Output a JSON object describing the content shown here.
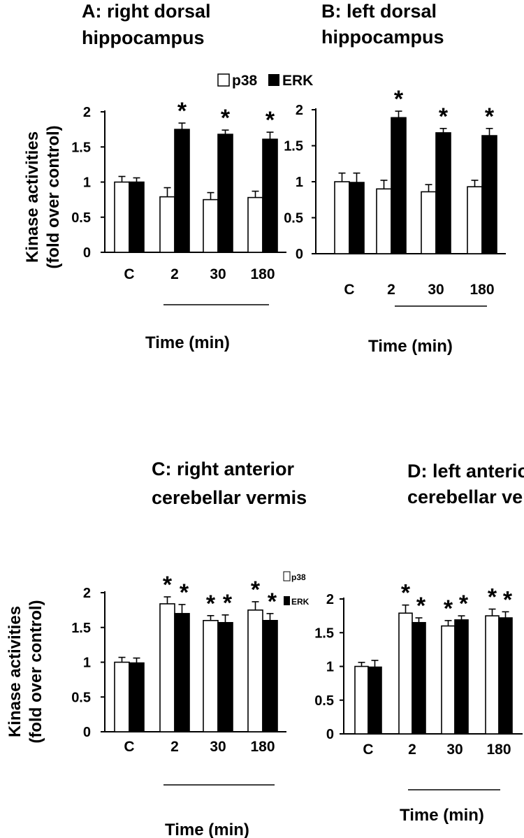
{
  "figure_legend": {
    "series": [
      "p38",
      "ERK"
    ]
  },
  "y_axis_label_top": [
    "Kinase activities",
    "(fold over control)"
  ],
  "y_axis_label_bottom": [
    "Kinase activities",
    "(fold over control)"
  ],
  "small_legend_c": {
    "series": [
      "p38",
      "ERK"
    ]
  },
  "chart_data": [
    {
      "type": "bar",
      "title": [
        "A: right dorsal",
        "hippocampus"
      ],
      "xlabel": "Time (min)",
      "ylabel": "Kinase activities (fold over control)",
      "categories": [
        "C",
        "2",
        "30",
        "180"
      ],
      "ylim": [
        0,
        2
      ],
      "yticks": [
        "0",
        "0.5",
        "1",
        "1.5",
        "2"
      ],
      "series": [
        {
          "name": "p38",
          "values": [
            1.0,
            0.79,
            0.75,
            0.78
          ],
          "errors": [
            0.08,
            0.13,
            0.1,
            0.09
          ],
          "color": "#ffffff"
        },
        {
          "name": "ERK",
          "values": [
            1.0,
            1.75,
            1.68,
            1.61
          ],
          "errors": [
            0.06,
            0.09,
            0.06,
            0.1
          ],
          "color": "#000000"
        }
      ],
      "significance": [
        [],
        [
          "*"
        ],
        [
          "*"
        ],
        [
          "*"
        ]
      ]
    },
    {
      "type": "bar",
      "title": [
        "B: left dorsal",
        "hippocampus"
      ],
      "xlabel": "Time (min)",
      "ylabel": "Kinase activities (fold over control)",
      "categories": [
        "C",
        "2",
        "30",
        "180"
      ],
      "ylim": [
        0,
        2
      ],
      "yticks": [
        "0",
        "0.5",
        "1",
        "1.5",
        "2"
      ],
      "series": [
        {
          "name": "p38",
          "values": [
            1.0,
            0.9,
            0.86,
            0.93
          ],
          "errors": [
            0.12,
            0.12,
            0.1,
            0.09
          ],
          "color": "#ffffff"
        },
        {
          "name": "ERK",
          "values": [
            0.99,
            1.89,
            1.68,
            1.64
          ],
          "errors": [
            0.13,
            0.09,
            0.06,
            0.1
          ],
          "color": "#000000"
        }
      ],
      "significance": [
        [],
        [
          "*"
        ],
        [
          "*"
        ],
        [
          "*"
        ]
      ]
    },
    {
      "type": "bar",
      "title": [
        "C: right anterior",
        "cerebellar vermis"
      ],
      "xlabel": "Time (min)",
      "ylabel": "Kinase activities (fold over control)",
      "categories": [
        "C",
        "2",
        "30",
        "180"
      ],
      "ylim": [
        0,
        2
      ],
      "yticks": [
        "0",
        "0.5",
        "1",
        "1.5",
        "2"
      ],
      "series": [
        {
          "name": "p38",
          "values": [
            1.0,
            1.84,
            1.6,
            1.75
          ],
          "errors": [
            0.07,
            0.1,
            0.07,
            0.12
          ],
          "color": "#ffffff"
        },
        {
          "name": "ERK",
          "values": [
            0.99,
            1.7,
            1.57,
            1.6
          ],
          "errors": [
            0.07,
            0.13,
            0.11,
            0.1
          ],
          "color": "#000000"
        }
      ],
      "significance": [
        [],
        [
          "*",
          "*"
        ],
        [
          "*",
          "*"
        ],
        [
          "*",
          "*"
        ]
      ]
    },
    {
      "type": "bar",
      "title": [
        "D: left anterior",
        "cerebellar vermis"
      ],
      "xlabel": "Time (min)",
      "ylabel": "Kinase activities (fold over control)",
      "categories": [
        "C",
        "2",
        "30",
        "180"
      ],
      "ylim": [
        0,
        2
      ],
      "yticks": [
        "0",
        "0.5",
        "1",
        "1.5",
        "2"
      ],
      "series": [
        {
          "name": "p38",
          "values": [
            1.0,
            1.79,
            1.6,
            1.75
          ],
          "errors": [
            0.06,
            0.12,
            0.08,
            0.1
          ],
          "color": "#ffffff"
        },
        {
          "name": "ERK",
          "values": [
            0.99,
            1.65,
            1.69,
            1.72
          ],
          "errors": [
            0.1,
            0.07,
            0.06,
            0.09
          ],
          "color": "#000000"
        }
      ],
      "significance": [
        [],
        [
          "*",
          "*"
        ],
        [
          "*",
          "*"
        ],
        [
          "*",
          "*"
        ]
      ]
    }
  ]
}
